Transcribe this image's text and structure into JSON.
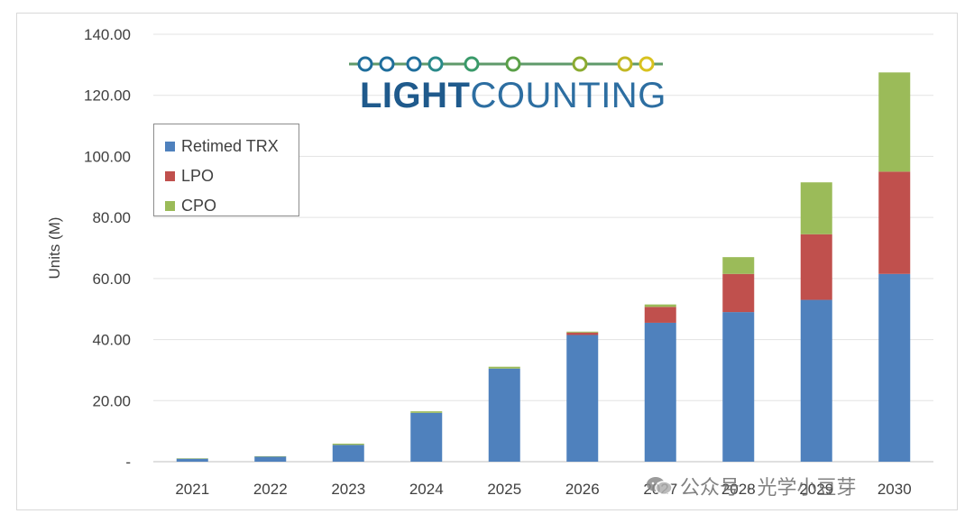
{
  "chart_data": {
    "type": "bar",
    "stacked": true,
    "categories": [
      "2021",
      "2022",
      "2023",
      "2024",
      "2025",
      "2026",
      "2027",
      "2028",
      "2029",
      "2030"
    ],
    "series": [
      {
        "name": "Retimed TRX",
        "color": "#4f81bd",
        "values": [
          1.0,
          1.7,
          5.5,
          16.0,
          30.5,
          41.5,
          45.5,
          49.0,
          53.0,
          61.5
        ]
      },
      {
        "name": "LPO",
        "color": "#c0504d",
        "values": [
          0,
          0,
          0,
          0,
          0,
          0.8,
          5.2,
          12.5,
          21.5,
          33.5
        ]
      },
      {
        "name": "CPO",
        "color": "#9bbb59",
        "values": [
          0.1,
          0.1,
          0.4,
          0.5,
          0.6,
          0.3,
          0.8,
          5.5,
          17.0,
          32.5
        ]
      }
    ],
    "ylabel": "Units (M)",
    "xlabel": "",
    "ylim": [
      0,
      140
    ],
    "yticks": [
      "-",
      "20.00",
      "40.00",
      "60.00",
      "80.00",
      "100.00",
      "120.00",
      "140.00"
    ],
    "grid": true,
    "legend_position": "top-left"
  },
  "logo": {
    "text_bold": "LIGHT",
    "text_regular": "COUNTING",
    "colors": [
      "#1f6e9c",
      "#1f6e9c",
      "#1f6e9c",
      "#2a8a8a",
      "#3a9a6a",
      "#5aa048",
      "#8bab30",
      "#c2b824",
      "#d9c21f"
    ]
  },
  "watermark": {
    "text": "公众号 · 光学小豆芽"
  }
}
